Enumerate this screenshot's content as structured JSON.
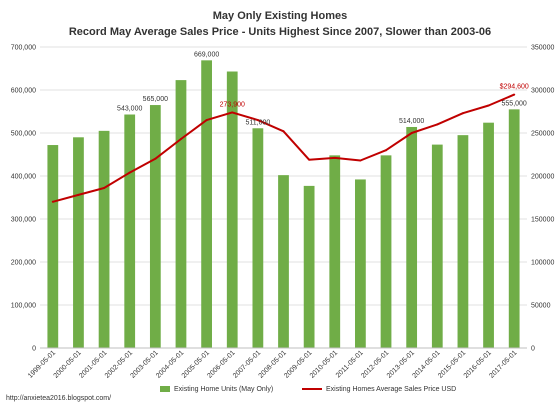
{
  "chart_data": {
    "type": "bar",
    "title": "May Only Existing Homes",
    "subtitle": "Record May Average Sales Price - Units Highest Since 2007, Slower than 2003-06",
    "categories": [
      "1999-05-01",
      "2000-05-01",
      "2001-05-01",
      "2002-05-01",
      "2003-05-01",
      "2004-05-01",
      "2005-05-01",
      "2006-05-01",
      "2007-05-01",
      "2008-05-01",
      "2009-05-01",
      "2010-05-01",
      "2011-05-01",
      "2012-05-01",
      "2013-05-01",
      "2014-05-01",
      "2015-05-01",
      "2016-05-01",
      "2017-05-01"
    ],
    "series": [
      {
        "name": "Existing Home Units (May Only)",
        "type": "bar",
        "axis": "left",
        "color": "#70ad47",
        "values": [
          472000,
          490000,
          505000,
          543000,
          565000,
          623000,
          669000,
          643000,
          511000,
          402000,
          377000,
          448000,
          392000,
          448000,
          514000,
          473000,
          495000,
          524000,
          555000
        ]
      },
      {
        "name": "Existing Homes Average Sales Price USD",
        "type": "line",
        "axis": "right",
        "color": "#c00000",
        "values": [
          170000,
          178000,
          186000,
          204000,
          220000,
          243000,
          265000,
          273900,
          265000,
          252000,
          219000,
          221000,
          218000,
          230000,
          250000,
          260000,
          273000,
          282000,
          294600
        ]
      }
    ],
    "bar_labels": [
      {
        "index": 3,
        "text": "543,000"
      },
      {
        "index": 4,
        "text": "565,000"
      },
      {
        "index": 6,
        "text": "669,000"
      },
      {
        "index": 8,
        "text": "511,000"
      },
      {
        "index": 14,
        "text": "514,000"
      },
      {
        "index": 18,
        "text": "555,000"
      }
    ],
    "line_labels": [
      {
        "index": 7,
        "text": "273,900"
      },
      {
        "index": 18,
        "text": "$294,600"
      }
    ],
    "y_left": {
      "min": 0,
      "max": 700000,
      "ticks": [
        "0",
        "100,000",
        "200,000",
        "300,000",
        "400,000",
        "500,000",
        "600,000",
        "700,000"
      ]
    },
    "y_right": {
      "min": 0,
      "max": 350000,
      "ticks": [
        "0",
        "50000",
        "100000",
        "150000",
        "200000",
        "250000",
        "300000",
        "350000"
      ]
    },
    "grid": true,
    "legend_position": "bottom"
  },
  "footer": {
    "source": "http://anxietea2016.blogspot.com/"
  },
  "colors": {
    "bar": "#70ad47",
    "line": "#c00000",
    "grid": "#d9d9d9",
    "text": "#333333",
    "label_red": "#c00000"
  }
}
